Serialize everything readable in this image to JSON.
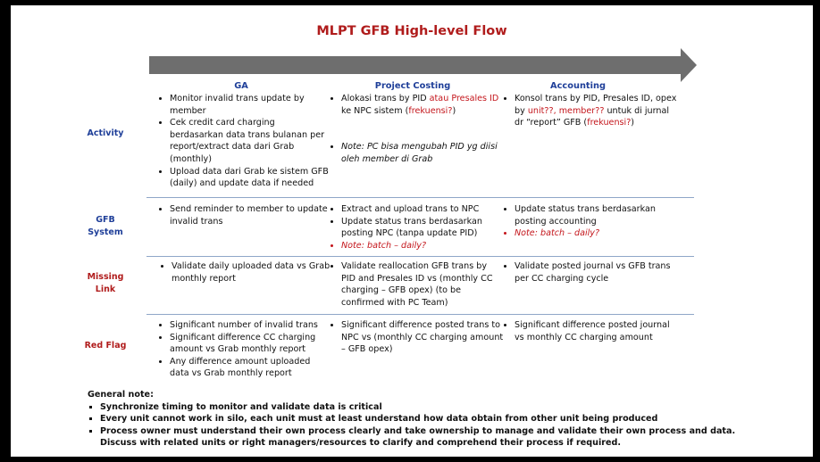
{
  "title": "MLPT GFB High-level Flow",
  "columns": [
    "GA",
    "Project Costing",
    "Accounting"
  ],
  "rows": [
    {
      "label": "Activity",
      "ga": [
        "Monitor invalid trans update by member",
        "Cek credit card charging berdasarkan data trans bulanan per report/extract data dari Grab (monthly)",
        "Upload data dari Grab ke sistem GFB (daily) and update data if needed"
      ],
      "pc": {
        "item1_a": "Alokasi trans by PID ",
        "item1_red": "atau Presales ID",
        "item1_b": " ke NPC sistem (",
        "item1_red2": "frekuensi?",
        "item1_c": ")",
        "note": "Note: PC bisa mengubah PID yg diisi oleh member di Grab"
      },
      "acc": {
        "a": "Konsol trans by PID, Presales ID, opex by ",
        "red1": "unit??, member??",
        "b": " untuk di jurnal  dr “report” GFB (",
        "red2": "frekuensi?",
        "c": ")"
      }
    },
    {
      "label": "GFB System",
      "ga": [
        "Send reminder to member to update invalid trans"
      ],
      "pc": [
        "Extract and upload trans to NPC",
        "Update status trans berdasarkan posting NPC (tanpa update PID)"
      ],
      "pc_note": "Note: batch – daily?",
      "acc": [
        "Update status trans berdasarkan posting accounting"
      ],
      "acc_note": "Note: batch – daily?"
    },
    {
      "label": "Missing Link",
      "ga": [
        "Validate daily uploaded data vs Grab monthly report"
      ],
      "pc": [
        "Validate reallocation GFB trans by PID and Presales ID vs (monthly CC charging – GFB opex) (to be confirmed with PC Team)"
      ],
      "acc": [
        "Validate posted journal vs GFB trans per CC charging cycle"
      ]
    },
    {
      "label": "Red Flag",
      "ga": [
        "Significant number of invalid trans",
        "Significant difference CC charging amount vs Grab monthly report",
        "Any difference amount uploaded data vs Grab monthly report"
      ],
      "pc": [
        "Significant difference posted trans to NPC vs (monthly CC charging amount – GFB opex)"
      ],
      "acc": [
        "Significant difference posted journal vs monthly CC charging amount"
      ]
    }
  ],
  "general_note": {
    "heading": "General note:",
    "items": [
      "Synchronize timing to monitor and validate data is critical",
      "Every unit cannot work in silo, each unit must at least understand how data obtain from other unit being produced",
      "Process owner must understand  their own process clearly and take ownership to manage and validate their own process and data.  Discuss with related units or right managers/resources to clarify and comprehend their process if required."
    ]
  }
}
